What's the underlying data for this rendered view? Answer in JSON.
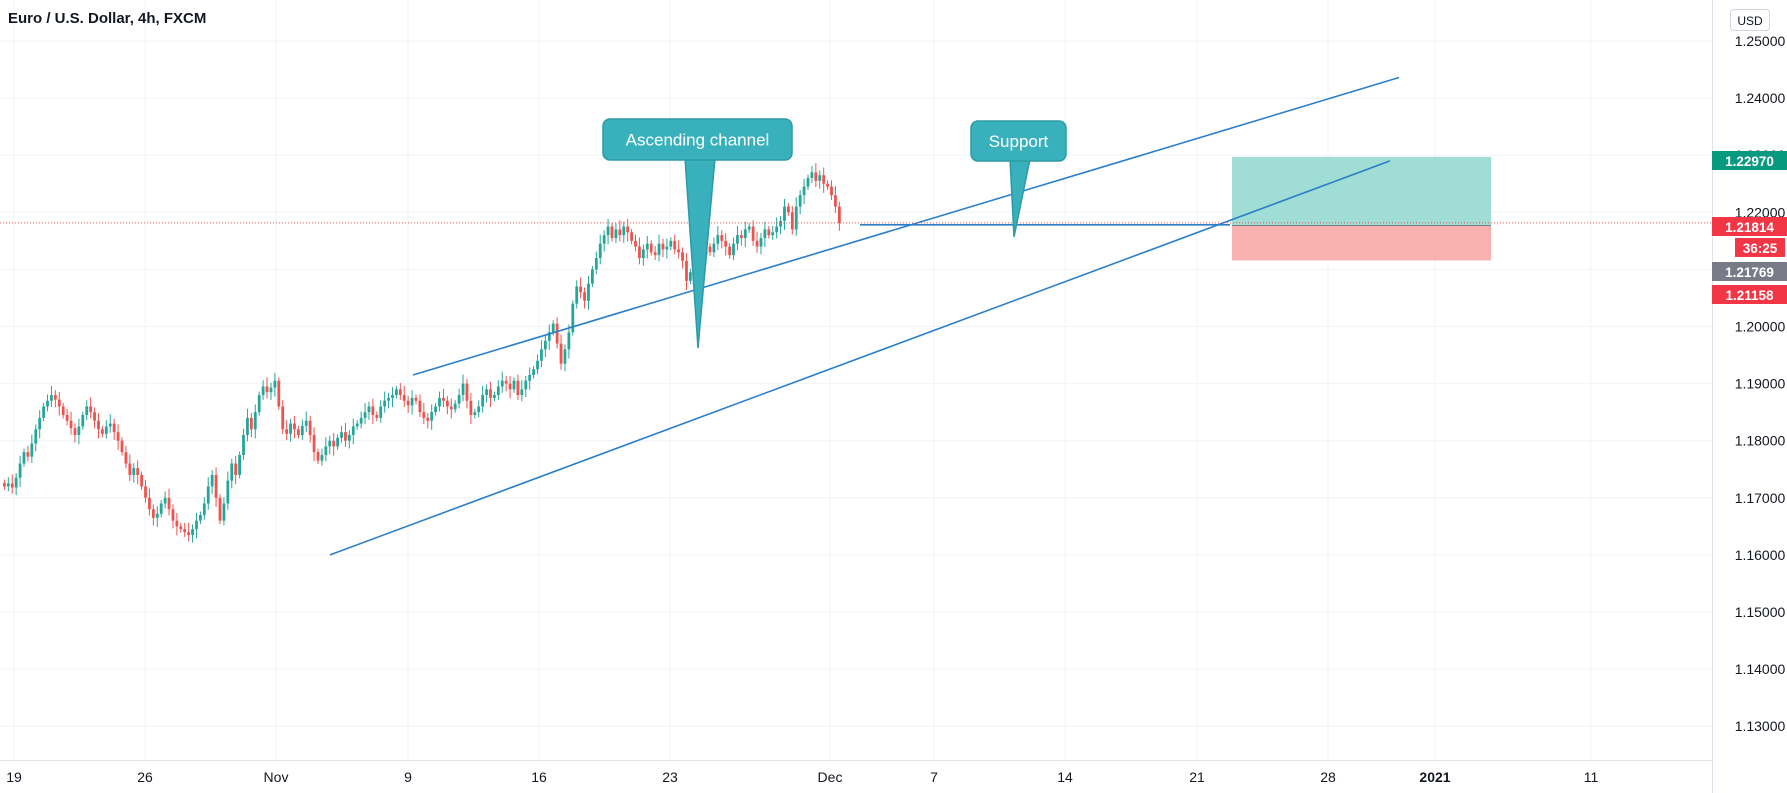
{
  "header": {
    "symbol_title": "Euro / U.S. Dollar, 4h, FXCM",
    "currency_button": "USD"
  },
  "chart_data": {
    "type": "candlestick",
    "symbol": "Euro / U.S. Dollar",
    "interval": "4h",
    "source": "FXCM",
    "x_tick_labels": [
      "19",
      "26",
      "Nov",
      "9",
      "16",
      "23",
      "Dec",
      "7",
      "14",
      "21",
      "28",
      "2021",
      "11"
    ],
    "y_tick_labels": [
      "1.25000",
      "1.24000",
      "1.23000",
      "1.22000",
      "1.21000",
      "1.20000",
      "1.19000",
      "1.18000",
      "1.17000",
      "1.16000",
      "1.15000",
      "1.14000",
      "1.13000"
    ],
    "y_range": [
      1.125,
      1.253
    ],
    "candle_closes_approx": [
      1.172,
      1.1725,
      1.1718,
      1.1735,
      1.176,
      1.178,
      1.1772,
      1.1795,
      1.182,
      1.184,
      1.186,
      1.187,
      1.188,
      1.1872,
      1.186,
      1.1845,
      1.1835,
      1.1822,
      1.181,
      1.1825,
      1.1845,
      1.186,
      1.185,
      1.1835,
      1.182,
      1.1812,
      1.1825,
      1.183,
      1.1815,
      1.18,
      1.178,
      1.176,
      1.174,
      1.1752,
      1.174,
      1.172,
      1.17,
      1.168,
      1.1665,
      1.1672,
      1.169,
      1.17,
      1.168,
      1.166,
      1.165,
      1.1645,
      1.164,
      1.1635,
      1.1645,
      1.166,
      1.167,
      1.169,
      1.172,
      1.174,
      1.17,
      1.166,
      1.169,
      1.173,
      1.176,
      1.174,
      1.1775,
      1.181,
      1.184,
      1.182,
      1.185,
      1.188,
      1.1895,
      1.1885,
      1.1893,
      1.1905,
      1.186,
      1.182,
      1.1812,
      1.183,
      1.182,
      1.181,
      1.1826,
      1.1835,
      1.181,
      1.178,
      1.1765,
      1.1775,
      1.179,
      1.18,
      1.179,
      1.1805,
      1.1815,
      1.18,
      1.181,
      1.1825,
      1.183,
      1.184,
      1.185,
      1.186,
      1.1845,
      1.184,
      1.186,
      1.187,
      1.1875,
      1.188,
      1.189,
      1.188,
      1.187,
      1.1862,
      1.1875,
      1.187,
      1.185,
      1.184,
      1.1835,
      1.185,
      1.186,
      1.1875,
      1.187,
      1.186,
      1.1855,
      1.1865,
      1.188,
      1.19,
      1.187,
      1.1845,
      1.185,
      1.186,
      1.188,
      1.189,
      1.1875,
      1.188,
      1.1895,
      1.1905,
      1.19,
      1.189,
      1.1905,
      1.188,
      1.189,
      1.1905,
      1.1915,
      1.1925,
      1.194,
      1.196,
      1.1975,
      1.199,
      1.2005,
      1.197,
      1.1935,
      1.196,
      1.199,
      1.204,
      1.207,
      1.206,
      1.2045,
      1.2075,
      1.21,
      1.212,
      1.2145,
      1.216,
      1.2175,
      1.2155,
      1.217,
      1.216,
      1.2175,
      1.2165,
      1.215,
      1.214,
      1.212,
      1.2135,
      1.2145,
      1.213,
      1.2125,
      1.2145,
      1.2135,
      1.214,
      1.215,
      1.2135,
      1.213,
      1.2115,
      1.208,
      1.2095,
      1.211,
      1.21,
      1.2125,
      1.214,
      1.213,
      1.2145,
      1.216,
      1.215,
      1.214,
      1.2125,
      1.2145,
      1.216,
      1.2155,
      1.217,
      1.2175,
      1.215,
      1.214,
      1.2155,
      1.217,
      1.216,
      1.2165,
      1.2175,
      1.2185,
      1.221,
      1.22,
      1.217,
      1.221,
      1.223,
      1.2245,
      1.226,
      1.227,
      1.2255,
      1.2265,
      1.225,
      1.2245,
      1.223,
      1.221,
      1.2181
    ],
    "annotations": [
      {
        "type": "text_callout",
        "text": "Ascending channel",
        "anchor_x_label": "23",
        "anchor_y_value": 1.1975
      },
      {
        "type": "text_callout",
        "text": "Support",
        "anchor_x_label": "7",
        "anchor_y_value": 1.217
      },
      {
        "type": "trend_line",
        "name": "channel-upper",
        "y_start": 1.1915,
        "y_end": 1.2436
      },
      {
        "type": "trend_line",
        "name": "channel-lower",
        "y_start": 1.16,
        "y_end": 1.229
      },
      {
        "type": "horizontal_line",
        "name": "support-line",
        "y": 1.2178
      }
    ],
    "position": {
      "target": 1.2297,
      "entry": 1.21769,
      "stop": 1.21158
    },
    "price_labels": [
      {
        "value": "1.22970",
        "color": "#089981"
      },
      {
        "value": "1.21814",
        "color": "#f23645"
      },
      {
        "value": "36:25",
        "color": "#f23645"
      },
      {
        "value": "1.21769",
        "color": "#787b86"
      },
      {
        "value": "1.21158",
        "color": "#f23645"
      }
    ],
    "last_price": 1.21814,
    "colors": {
      "up": "#26a69a",
      "down": "#ef5350",
      "drawing": "#2a7fc9",
      "callout": "#39b1bd",
      "target_zone": "#a0ddd5",
      "stop_zone": "#f9b1af"
    },
    "grid": true
  }
}
